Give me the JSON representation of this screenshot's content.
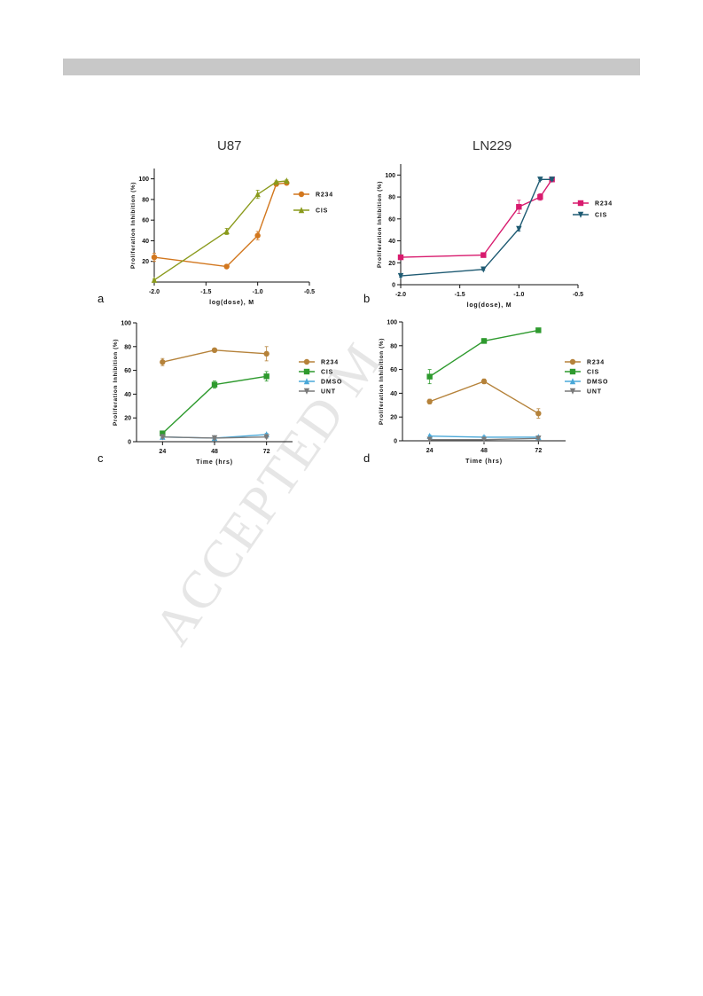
{
  "watermark": "ACCEPTED M",
  "titles": {
    "left": "U87",
    "right": "LN229"
  },
  "panel_letters": [
    "a",
    "b",
    "c",
    "d"
  ],
  "chart_data": [
    {
      "panel": "a",
      "type": "line",
      "xlabel": "log(dose), M",
      "ylabel": "Proliferation Inhibition (%)",
      "xlim": [
        -2.0,
        -0.5
      ],
      "ylim": [
        0,
        110
      ],
      "xticks": [
        -2.0,
        -1.5,
        -1.0,
        -0.5
      ],
      "xtick_labels": [
        "-2.0",
        "-1.5",
        "-1.0",
        "-0.5"
      ],
      "yticks": [
        20,
        40,
        60,
        80,
        100
      ],
      "ytick_labels": [
        "20",
        "40",
        "60",
        "80",
        "100"
      ],
      "legend": "right",
      "series": [
        {
          "name": "R234",
          "color": "#d2771e",
          "marker": "circle",
          "x": [
            -2.0,
            -1.3,
            -1.0,
            -0.82,
            -0.72
          ],
          "y": [
            24,
            15,
            45,
            95,
            96
          ],
          "err": [
            4,
            1,
            4,
            2,
            2
          ]
        },
        {
          "name": "CIS",
          "color": "#8a9a1c",
          "marker": "triangle",
          "x": [
            -2.0,
            -1.3,
            -1.0,
            -0.82,
            -0.72
          ],
          "y": [
            2,
            49,
            85,
            97,
            98
          ],
          "err": [
            1,
            3,
            4,
            1,
            1
          ]
        }
      ]
    },
    {
      "panel": "b",
      "type": "line",
      "xlabel": "log(dose), M",
      "ylabel": "Proliferation Inhibition (%)",
      "xlim": [
        -2.0,
        -0.5
      ],
      "ylim": [
        0,
        110
      ],
      "xticks": [
        -2.0,
        -1.5,
        -1.0,
        -0.5
      ],
      "xtick_labels": [
        "-2.0",
        "-1.5",
        "-1.0",
        "-0.5"
      ],
      "yticks": [
        0,
        20,
        40,
        60,
        80,
        100
      ],
      "ytick_labels": [
        "0",
        "20",
        "40",
        "60",
        "80",
        "100"
      ],
      "legend": "right",
      "series": [
        {
          "name": "R234",
          "color": "#d81b6e",
          "marker": "square",
          "x": [
            -2.0,
            -1.3,
            -1.0,
            -0.82,
            -0.72
          ],
          "y": [
            25,
            27,
            71,
            80,
            96
          ],
          "err": [
            1,
            1,
            6,
            3,
            1
          ]
        },
        {
          "name": "CIS",
          "color": "#1f5b73",
          "marker": "triangle-down",
          "x": [
            -2.0,
            -1.3,
            -1.0,
            -0.82,
            -0.72
          ],
          "y": [
            8,
            14,
            51,
            96,
            96
          ],
          "err": [
            1,
            1,
            2,
            1,
            1
          ]
        }
      ]
    },
    {
      "panel": "c",
      "type": "line",
      "xlabel": "Time (hrs)",
      "ylabel": "Proliferation Inhibition (%)",
      "xlim": [
        12,
        84
      ],
      "ylim": [
        0,
        100
      ],
      "xticks": [
        24,
        48,
        72
      ],
      "xtick_labels": [
        "24",
        "48",
        "72"
      ],
      "yticks": [
        0,
        20,
        40,
        60,
        80,
        100
      ],
      "ytick_labels": [
        "0",
        "20",
        "40",
        "60",
        "80",
        "100"
      ],
      "legend": "right",
      "series": [
        {
          "name": "R234",
          "color": "#b5823a",
          "marker": "circle",
          "x": [
            24,
            48,
            72
          ],
          "y": [
            67,
            77,
            74
          ],
          "err": [
            3,
            1,
            6
          ]
        },
        {
          "name": "CIS",
          "color": "#2e9a2e",
          "marker": "square",
          "x": [
            24,
            48,
            72
          ],
          "y": [
            7,
            48,
            55
          ],
          "err": [
            2,
            3,
            4
          ]
        },
        {
          "name": "DMSO",
          "color": "#4aa8d8",
          "marker": "triangle",
          "x": [
            24,
            48,
            72
          ],
          "y": [
            4,
            3,
            6
          ],
          "err": [
            1,
            1,
            1
          ]
        },
        {
          "name": "UNT",
          "color": "#7a7a7a",
          "marker": "triangle-down",
          "x": [
            24,
            48,
            72
          ],
          "y": [
            4,
            3,
            4
          ],
          "err": [
            1,
            1,
            1
          ]
        }
      ]
    },
    {
      "panel": "d",
      "type": "line",
      "xlabel": "Time (hrs)",
      "ylabel": "Proliferation Inhibition (%)",
      "xlim": [
        12,
        84
      ],
      "ylim": [
        0,
        100
      ],
      "xticks": [
        24,
        48,
        72
      ],
      "xtick_labels": [
        "24",
        "48",
        "72"
      ],
      "yticks": [
        0,
        20,
        40,
        60,
        80,
        100
      ],
      "ytick_labels": [
        "0",
        "20",
        "40",
        "60",
        "80",
        "100"
      ],
      "legend": "right",
      "series": [
        {
          "name": "R234",
          "color": "#b5823a",
          "marker": "circle",
          "x": [
            24,
            48,
            72
          ],
          "y": [
            33,
            50,
            23
          ],
          "err": [
            2,
            2,
            4
          ]
        },
        {
          "name": "CIS",
          "color": "#2e9a2e",
          "marker": "square",
          "x": [
            24,
            48,
            72
          ],
          "y": [
            54,
            84,
            93
          ],
          "err": [
            6,
            2,
            1
          ]
        },
        {
          "name": "DMSO",
          "color": "#4aa8d8",
          "marker": "triangle",
          "x": [
            24,
            48,
            72
          ],
          "y": [
            4,
            3,
            3
          ],
          "err": [
            1,
            1,
            1
          ]
        },
        {
          "name": "UNT",
          "color": "#7a7a7a",
          "marker": "triangle-down",
          "x": [
            24,
            48,
            72
          ],
          "y": [
            1,
            1,
            2
          ],
          "err": [
            0,
            0,
            0
          ]
        }
      ]
    }
  ]
}
